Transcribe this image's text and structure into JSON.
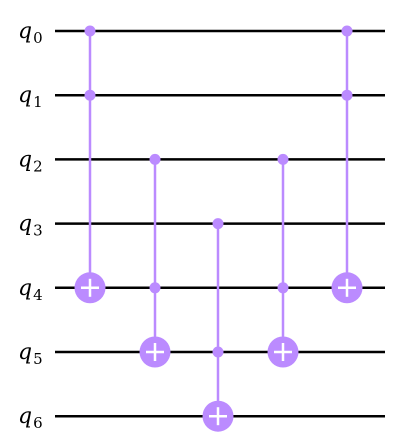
{
  "circuit": {
    "qubits": [
      {
        "base": "q",
        "index": "0"
      },
      {
        "base": "q",
        "index": "1"
      },
      {
        "base": "q",
        "index": "2"
      },
      {
        "base": "q",
        "index": "3"
      },
      {
        "base": "q",
        "index": "4"
      },
      {
        "base": "q",
        "index": "5"
      },
      {
        "base": "q",
        "index": "6"
      }
    ],
    "gates": [
      {
        "type": "ccx",
        "controls": [
          0,
          1
        ],
        "target": 4
      },
      {
        "type": "ccx",
        "controls": [
          2,
          4
        ],
        "target": 5
      },
      {
        "type": "ccx",
        "controls": [
          3,
          5
        ],
        "target": 6
      },
      {
        "type": "ccx",
        "controls": [
          2,
          4
        ],
        "target": 5
      },
      {
        "type": "ccx",
        "controls": [
          0,
          1
        ],
        "target": 4
      }
    ],
    "colors": {
      "gate": "#bb8bff",
      "wire": "#000000",
      "plus": "#ffffff"
    }
  }
}
